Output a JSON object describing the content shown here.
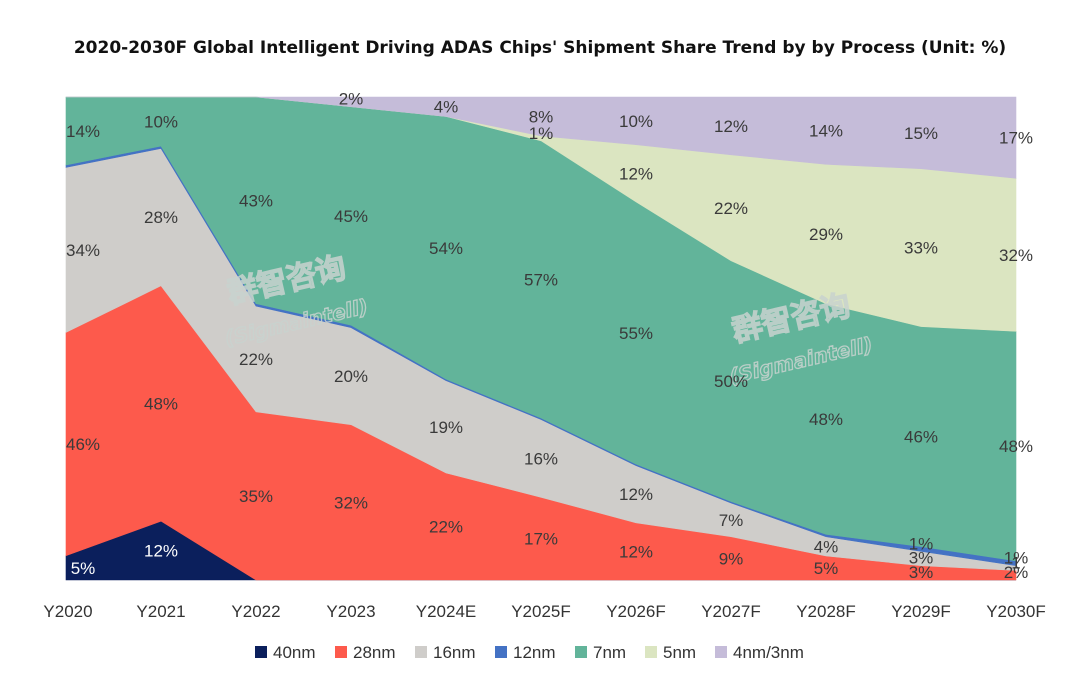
{
  "chart_data": {
    "type": "area",
    "stacked": true,
    "normalized_percent": true,
    "title": "2020-2030F Global Intelligent Driving ADAS Chips' Shipment Share Trend by by Process (Unit: %)",
    "xlabel": "",
    "ylabel": "",
    "ylim": [
      0,
      100
    ],
    "grid": false,
    "legend_position": "bottom",
    "categories": [
      "Y2020",
      "Y2021",
      "Y2022",
      "Y2023",
      "Y2024E",
      "Y2025F",
      "Y2026F",
      "Y2027F",
      "Y2028F",
      "Y2029F",
      "Y2030F"
    ],
    "series": [
      {
        "name": "40nm",
        "color": "#0b1f5c",
        "values": [
          5,
          12,
          0,
          0,
          0,
          0,
          0,
          0,
          0,
          0,
          0
        ],
        "labels": [
          "5%",
          "12%",
          "",
          "",
          "",
          "",
          "",
          "",
          "",
          "",
          ""
        ]
      },
      {
        "name": "28nm",
        "color": "#fd5a4c",
        "values": [
          46,
          48,
          35,
          32,
          22,
          17,
          12,
          9,
          5,
          3,
          2
        ],
        "labels": [
          "46%",
          "48%",
          "35%",
          "32%",
          "22%",
          "17%",
          "12%",
          "9%",
          "5%",
          "3%",
          "2%"
        ]
      },
      {
        "name": "16nm",
        "color": "#cfcdca",
        "values": [
          34,
          28,
          22,
          20,
          19,
          16,
          12,
          7,
          4,
          3,
          1
        ],
        "labels": [
          "34%",
          "28%",
          "22%",
          "20%",
          "19%",
          "16%",
          "12%",
          "7%",
          "4%",
          "3%",
          "1"
        ]
      },
      {
        "name": "12nm",
        "color": "#4472c4",
        "values": [
          0.5,
          0.5,
          0.5,
          0.5,
          0.3,
          0.3,
          0.3,
          0.3,
          0.5,
          1,
          1
        ],
        "labels": [
          "",
          "",
          "",
          "",
          "",
          "",
          "",
          "",
          "",
          "1%",
          "1%"
        ]
      },
      {
        "name": "7nm",
        "color": "#62b49a",
        "values": [
          14,
          10,
          43,
          45,
          54,
          57,
          55,
          50,
          48,
          46,
          48
        ],
        "labels": [
          "14%",
          "10%",
          "43%",
          "45%",
          "54%",
          "57%",
          "55%",
          "50%",
          "48%",
          "46%",
          "48%"
        ]
      },
      {
        "name": "5nm",
        "color": "#dbe5c1",
        "values": [
          0,
          0,
          0,
          0,
          0,
          1,
          12,
          22,
          29,
          33,
          32
        ],
        "labels": [
          "",
          "",
          "",
          "",
          "",
          "1%",
          "12%",
          "22%",
          "29%",
          "33%",
          "32%"
        ]
      },
      {
        "name": "4nm/3nm",
        "color": "#c5bcd9",
        "values": [
          0,
          0,
          0,
          2,
          4,
          8,
          10,
          12,
          14,
          15,
          17
        ],
        "labels": [
          "",
          "",
          "",
          "2%",
          "4%",
          "8%",
          "10%",
          "12%",
          "14%",
          "15%",
          "17%"
        ]
      }
    ]
  },
  "watermark": {
    "text_cn": "群智咨询",
    "text_en": "(Sigmaintell)"
  }
}
